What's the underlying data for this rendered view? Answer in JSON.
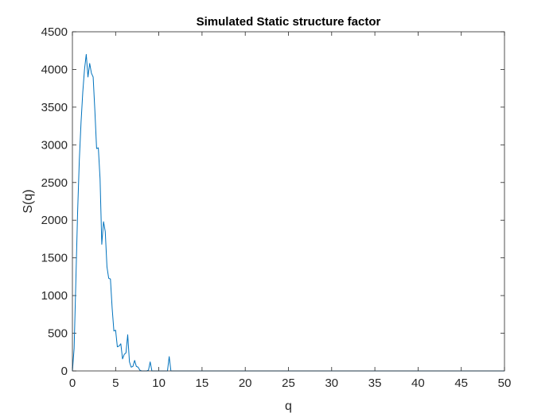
{
  "chart_data": {
    "type": "line",
    "title": "Simulated Static structure factor",
    "xlabel": "q",
    "ylabel": "S(q)",
    "xlim": [
      0,
      50
    ],
    "ylim": [
      0,
      4500
    ],
    "xticks": [
      0,
      5,
      10,
      15,
      20,
      25,
      30,
      35,
      40,
      45,
      50
    ],
    "yticks": [
      0,
      500,
      1000,
      1500,
      2000,
      2500,
      3000,
      3500,
      4000,
      4500
    ],
    "grid": false,
    "line_color": "#0072BD",
    "series": [
      {
        "x": [
          0,
          0.2,
          0.4,
          0.6,
          0.8,
          1.0,
          1.2,
          1.4,
          1.6,
          1.8,
          2.0,
          2.2,
          2.4,
          2.6,
          2.8,
          3.0,
          3.2,
          3.4,
          3.6,
          3.8,
          4.0,
          4.2,
          4.4,
          4.6,
          4.8,
          5.0,
          5.2,
          5.4,
          5.6,
          5.8,
          6.0,
          6.2,
          6.4,
          6.6,
          6.8,
          7.0,
          7.2,
          7.4,
          7.6,
          7.8,
          8.0,
          8.2,
          8.4,
          8.6,
          8.8,
          9.0,
          9.2,
          9.4,
          9.6,
          9.8,
          10.0,
          10.4,
          10.8,
          11.0,
          11.2,
          11.4,
          11.6,
          12.0,
          12.5,
          13.0,
          13.5,
          13.8,
          14.0,
          14.2,
          14.5,
          15.0,
          20,
          25,
          30,
          35,
          40,
          45,
          50
        ],
        "y": [
          0,
          300,
          1200,
          2100,
          2800,
          3300,
          3700,
          4000,
          4200,
          3900,
          4080,
          3950,
          3900,
          3450,
          2950,
          2960,
          2550,
          1680,
          1980,
          1850,
          1380,
          1230,
          1220,
          830,
          530,
          540,
          320,
          330,
          360,
          160,
          220,
          240,
          480,
          120,
          50,
          60,
          140,
          60,
          50,
          10,
          0,
          0,
          0,
          0,
          10,
          120,
          0,
          0,
          0,
          0,
          0,
          0,
          0,
          0,
          190,
          0,
          0,
          0,
          0,
          0,
          0,
          0,
          0,
          0,
          0,
          0,
          0,
          0,
          0,
          0,
          0,
          0,
          0
        ]
      }
    ]
  }
}
